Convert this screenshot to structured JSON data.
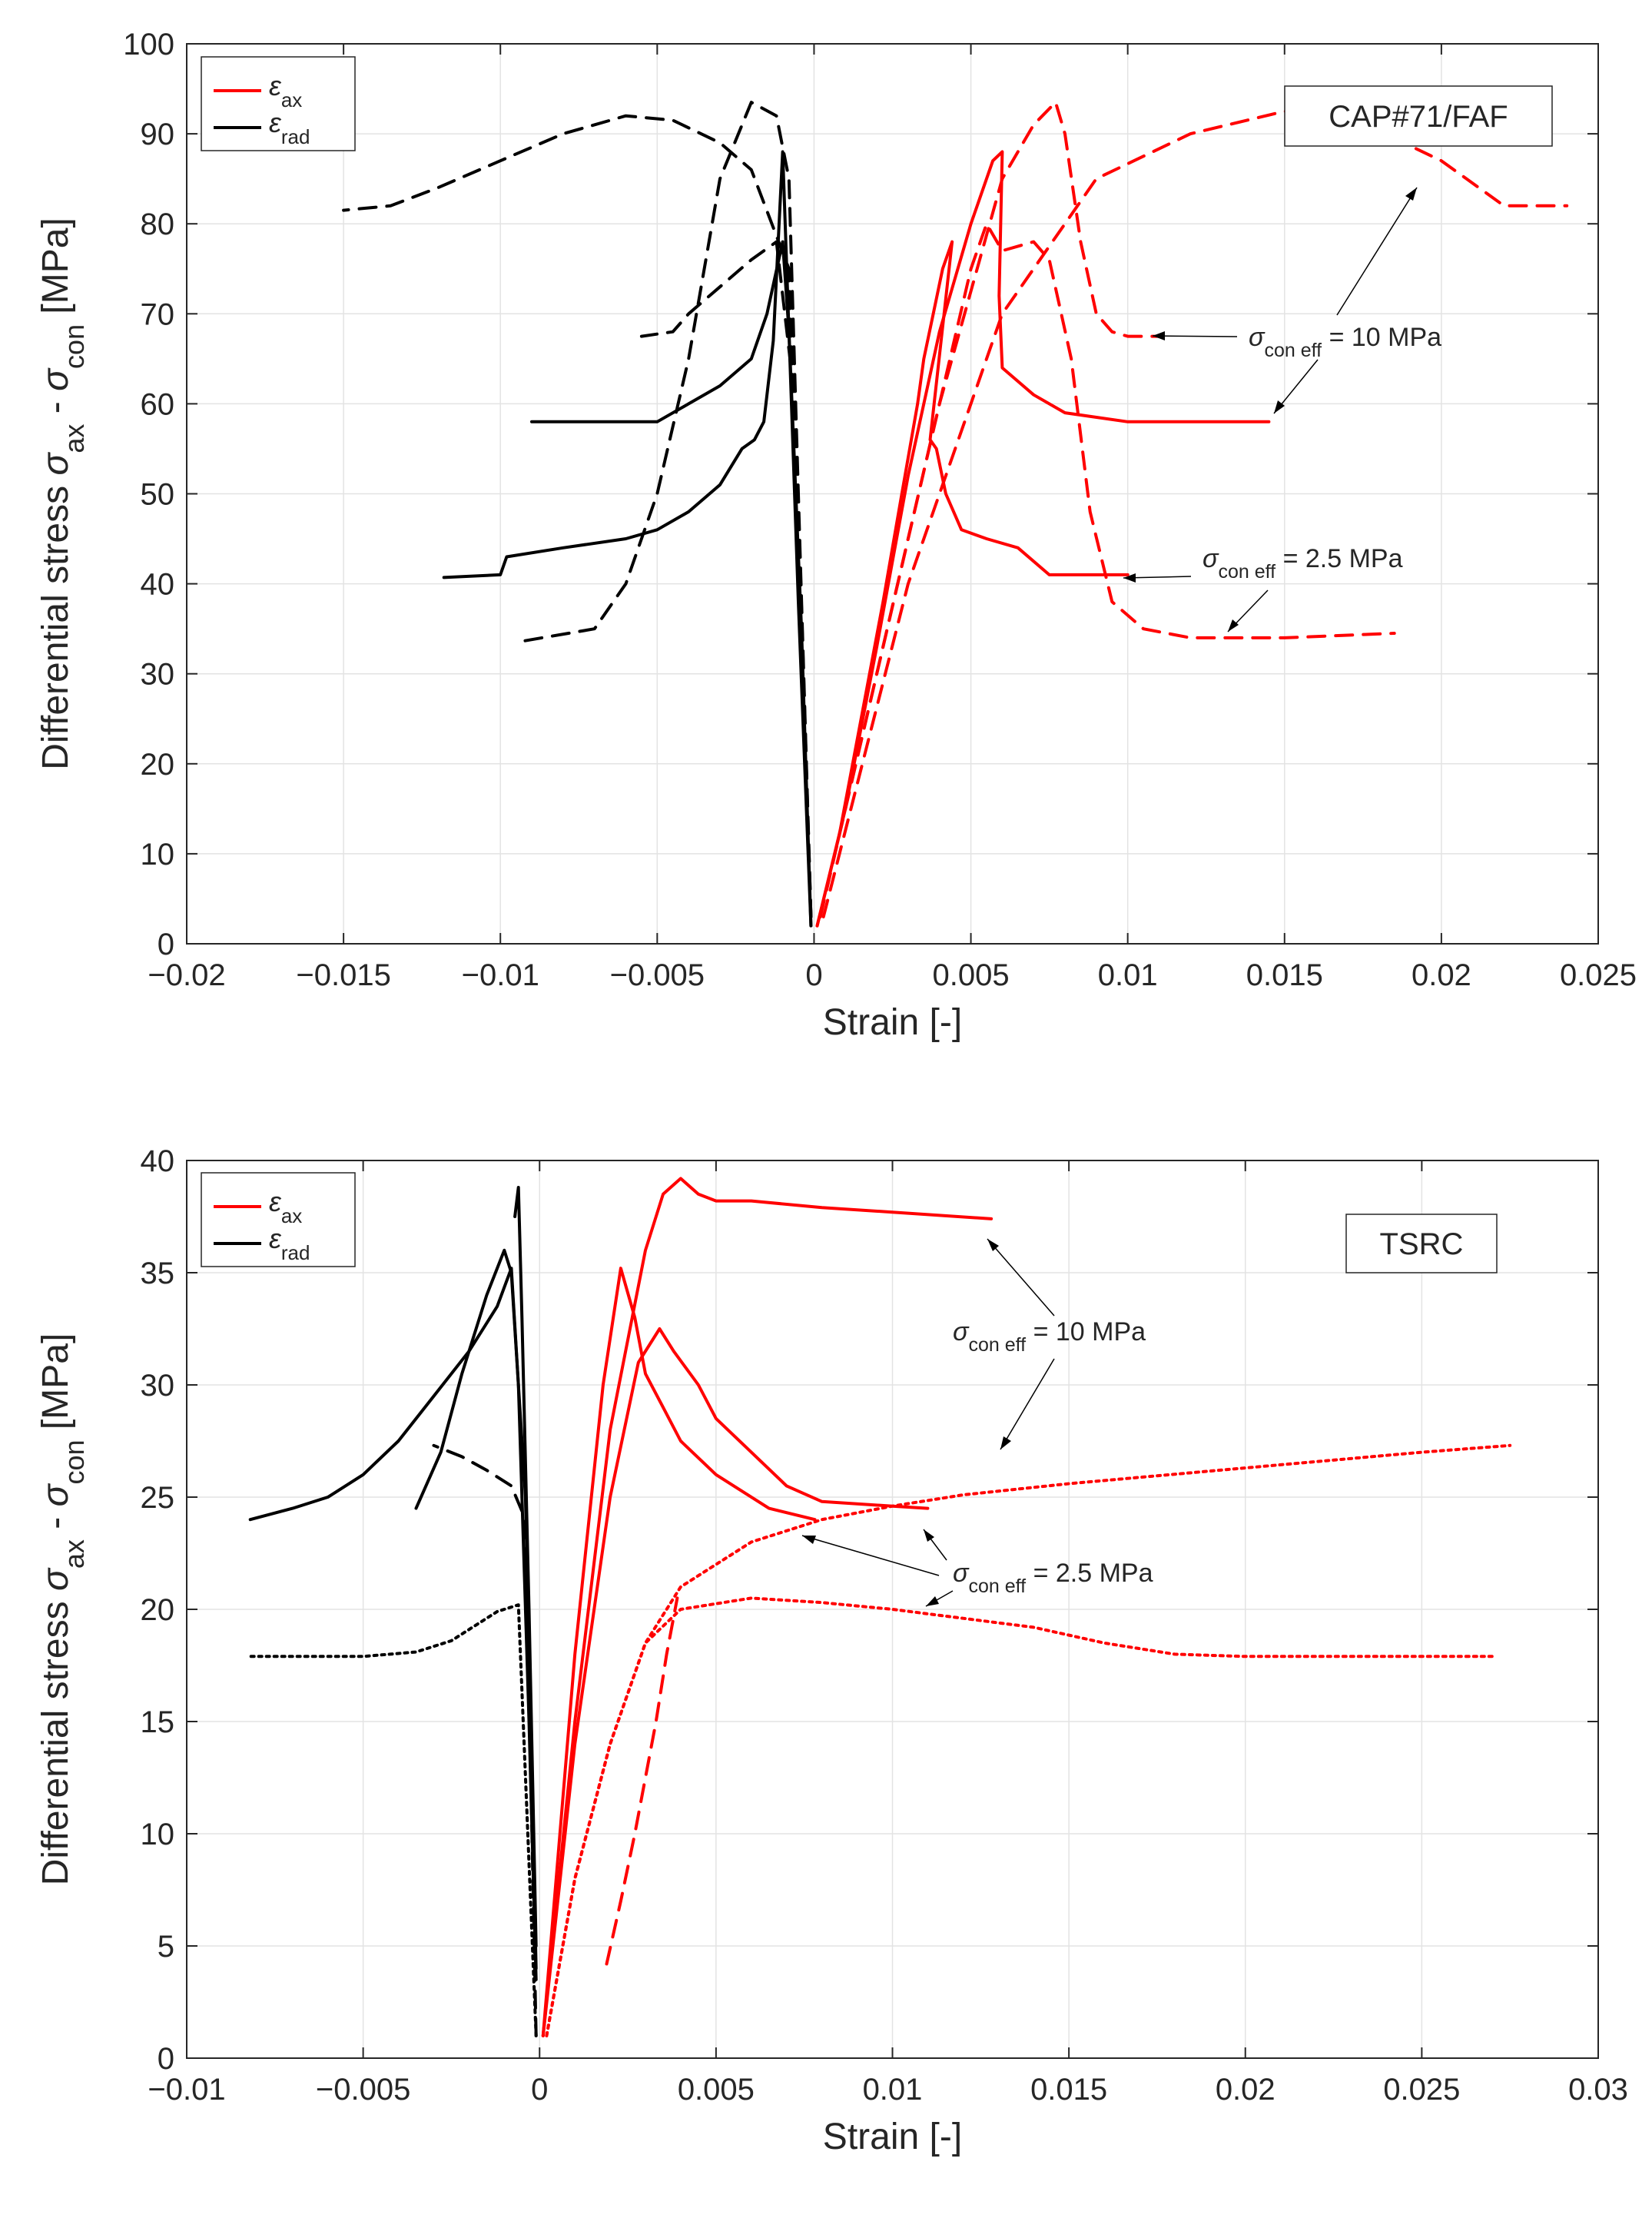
{
  "chart_data": [
    {
      "type": "line",
      "panel_label": "CAP#71/FAF",
      "xlabel": "Strain [-]",
      "ylabel": {
        "prefix": "Differential stress ",
        "sym1": "σ",
        "sub1": "ax",
        "middle": " - ",
        "sym2": "σ",
        "sub2": "con",
        "suffix": " [MPa]"
      },
      "xlim": [
        -0.02,
        0.025
      ],
      "ylim": [
        0,
        100
      ],
      "xticks": [
        -0.02,
        -0.015,
        -0.01,
        -0.005,
        0,
        0.005,
        0.01,
        0.015,
        0.02,
        0.025
      ],
      "xtick_labels": [
        "−0.02",
        "−0.015",
        "−0.01",
        "−0.005",
        "0",
        "0.005",
        "0.01",
        "0.015",
        "0.02",
        "0.025"
      ],
      "yticks": [
        0,
        10,
        20,
        30,
        40,
        50,
        60,
        70,
        80,
        90,
        100
      ],
      "ytick_labels": [
        "0",
        "10",
        "20",
        "30",
        "40",
        "50",
        "60",
        "70",
        "80",
        "90",
        "100"
      ],
      "grid": true,
      "legend": {
        "position": "top-left",
        "entries": [
          {
            "symbol": "ε",
            "sub": "ax",
            "color": "#ff0000"
          },
          {
            "symbol": "ε",
            "sub": "rad",
            "color": "#000000"
          }
        ]
      },
      "annotations": [
        {
          "sym": "σ",
          "sub": "con eff",
          "text": " = 10 MPa"
        },
        {
          "sym": "σ",
          "sub": "con eff",
          "text": " = 2.5 MPa"
        }
      ],
      "series": [
        {
          "name": "ax 10 MPa solid",
          "color": "#ff0000",
          "style": "solid",
          "x": [
            0.0001,
            0.001,
            0.002,
            0.003,
            0.004,
            0.005,
            0.0057,
            0.006,
            0.0059,
            0.006,
            0.007,
            0.008,
            0.01,
            0.012,
            0.0145
          ],
          "y": [
            2,
            15,
            33,
            52,
            68,
            80,
            87,
            88,
            72,
            64,
            61,
            59,
            58,
            58,
            58
          ]
        },
        {
          "name": "ax 2.5 MPa solid",
          "color": "#ff0000",
          "style": "solid",
          "x": [
            0.0001,
            0.0008,
            0.0015,
            0.0022,
            0.0028,
            0.0033,
            0.0035,
            0.0038,
            0.0041,
            0.0044,
            0.0037,
            0.0039,
            0.0042,
            0.0047,
            0.0055,
            0.0065,
            0.0075,
            0.0085,
            0.01
          ],
          "y": [
            2,
            12,
            25,
            38,
            50,
            60,
            65,
            70,
            75,
            78,
            56,
            55,
            50,
            46,
            45,
            44,
            41,
            41,
            41
          ]
        },
        {
          "name": "ax 10 MPa dashed",
          "color": "#ff0000",
          "style": "dashed",
          "x": [
            0.0002,
            0.002,
            0.004,
            0.006,
            0.007,
            0.0077,
            0.008,
            0.0085,
            0.009,
            0.0095,
            0.01,
            0.011
          ],
          "y": [
            3,
            30,
            60,
            85,
            91,
            93.5,
            90,
            78,
            70,
            68,
            67.5,
            67.5
          ]
        },
        {
          "name": "ax 2.5 MPa dashed",
          "color": "#ff0000",
          "style": "dashed",
          "x": [
            0.0002,
            0.002,
            0.004,
            0.005,
            0.0055,
            0.006,
            0.007,
            0.0075,
            0.0082,
            0.0088,
            0.0095,
            0.0105,
            0.012,
            0.015,
            0.0185
          ],
          "y": [
            3,
            30,
            60,
            75,
            80,
            77,
            78,
            76,
            65,
            48,
            38,
            35,
            34,
            34,
            34.5
          ]
        },
        {
          "name": "ax 10 MPa dashed long",
          "color": "#ff0000",
          "style": "dashed",
          "x": [
            0.0003,
            0.003,
            0.006,
            0.009,
            0.012,
            0.015,
            0.017,
            0.02,
            0.022,
            0.024
          ],
          "y": [
            3,
            40,
            70,
            85,
            90,
            92.5,
            92,
            87,
            82,
            82
          ]
        },
        {
          "name": "rad 10 MPa solid",
          "color": "#000000",
          "style": "solid",
          "x": [
            -0.0001,
            -0.0004,
            -0.0008,
            -0.001,
            -0.0015,
            -0.002,
            -0.003,
            -0.004,
            -0.005,
            -0.007,
            -0.009
          ],
          "y": [
            2,
            35,
            68,
            78,
            70,
            65,
            62,
            60,
            58,
            58,
            58
          ]
        },
        {
          "name": "rad 2.5 MPa solid",
          "color": "#000000",
          "style": "solid",
          "x": [
            -0.0001,
            -0.0005,
            -0.0009,
            -0.001,
            -0.0013,
            -0.0016,
            -0.0019,
            -0.0023,
            -0.003,
            -0.004,
            -0.005,
            -0.006,
            -0.008,
            -0.0098,
            -0.01,
            -0.0118
          ],
          "y": [
            2,
            38,
            78,
            88,
            67,
            58,
            56,
            55,
            51,
            48,
            46,
            45,
            44,
            43,
            41,
            40.7
          ]
        },
        {
          "name": "rad 10 MPa dashed",
          "color": "#000000",
          "style": "dashed",
          "x": [
            -0.0001,
            -0.0005,
            -0.0008,
            -0.0012,
            -0.002,
            -0.003,
            -0.004,
            -0.005,
            -0.006,
            -0.007,
            -0.0095
          ],
          "y": [
            3,
            50,
            85,
            92,
            93.5,
            85,
            65,
            50,
            40,
            35,
            33.5
          ]
        },
        {
          "name": "rad 2.5 MPa dashed",
          "color": "#000000",
          "style": "dashed",
          "x": [
            -0.0001,
            -0.0006,
            -0.0012,
            -0.002,
            -0.003,
            -0.004,
            -0.0045,
            -0.0055
          ],
          "y": [
            3,
            60,
            78,
            76,
            73,
            70,
            68,
            67.5
          ]
        },
        {
          "name": "rad 10 MPa dashed long",
          "color": "#000000",
          "style": "dashed",
          "x": [
            -0.0001,
            -0.0008,
            -0.002,
            -0.003,
            -0.0045,
            -0.006,
            -0.008,
            -0.01,
            -0.012,
            -0.0135,
            -0.015
          ],
          "y": [
            3,
            75,
            86,
            89,
            91.5,
            92,
            90,
            87,
            84,
            82,
            81.5
          ]
        }
      ]
    },
    {
      "type": "line",
      "panel_label": "TSRC",
      "xlabel": "Strain [-]",
      "ylabel": {
        "prefix": "Differential stress ",
        "sym1": "σ",
        "sub1": "ax",
        "middle": " - ",
        "sym2": "σ",
        "sub2": "con",
        "suffix": " [MPa]"
      },
      "xlim": [
        -0.01,
        0.03
      ],
      "ylim": [
        0,
        40
      ],
      "xticks": [
        -0.01,
        -0.005,
        0,
        0.005,
        0.01,
        0.015,
        0.02,
        0.025,
        0.03
      ],
      "xtick_labels": [
        "−0.01",
        "−0.005",
        "0",
        "0.005",
        "0.01",
        "0.015",
        "0.02",
        "0.025",
        "0.03"
      ],
      "yticks": [
        0,
        5,
        10,
        15,
        20,
        25,
        30,
        35,
        40
      ],
      "ytick_labels": [
        "0",
        "5",
        "10",
        "15",
        "20",
        "25",
        "30",
        "35",
        "40"
      ],
      "grid": true,
      "legend": {
        "position": "top-left",
        "entries": [
          {
            "symbol": "ε",
            "sub": "ax",
            "color": "#ff0000"
          },
          {
            "symbol": "ε",
            "sub": "rad",
            "color": "#000000"
          }
        ]
      },
      "annotations": [
        {
          "sym": "σ",
          "sub": "con eff",
          "text": " = 10 MPa"
        },
        {
          "sym": "σ",
          "sub": "con eff",
          "text": " = 2.5 MPa"
        }
      ],
      "series": [
        {
          "name": "ax 10 MPa solid",
          "color": "#ff0000",
          "style": "solid",
          "x": [
            0.0001,
            0.001,
            0.002,
            0.003,
            0.0035,
            0.004,
            0.0045,
            0.005,
            0.006,
            0.008,
            0.01,
            0.0128
          ],
          "y": [
            1,
            15,
            28,
            36,
            38.5,
            39.2,
            38.5,
            38.2,
            38.2,
            37.9,
            37.7,
            37.4
          ]
        },
        {
          "name": "ax 2.5 MPa solid",
          "color": "#ff0000",
          "style": "solid",
          "x": [
            0.0001,
            0.001,
            0.0018,
            0.0023,
            0.0027,
            0.003,
            0.0035,
            0.004,
            0.005,
            0.0065,
            0.0078
          ],
          "y": [
            1,
            18,
            30,
            35.2,
            33,
            30.5,
            29,
            27.5,
            26,
            24.5,
            24
          ]
        },
        {
          "name": "ax 10 MPa solid b",
          "color": "#ff0000",
          "style": "solid",
          "x": [
            0.0001,
            0.001,
            0.002,
            0.0028,
            0.0034,
            0.0038,
            0.0045,
            0.005,
            0.006,
            0.007,
            0.008,
            0.01,
            0.011
          ],
          "y": [
            1,
            14,
            25,
            31,
            32.5,
            31.5,
            30,
            28.5,
            27,
            25.5,
            24.8,
            24.6,
            24.5
          ]
        },
        {
          "name": "ax 10 MPa dotted",
          "color": "#ff0000",
          "style": "dotted",
          "x": [
            0.0002,
            0.001,
            0.002,
            0.003,
            0.004,
            0.006,
            0.008,
            0.01,
            0.012,
            0.015,
            0.02,
            0.025,
            0.0275
          ],
          "y": [
            1,
            8,
            14,
            18.5,
            21,
            23,
            24,
            24.6,
            25.1,
            25.6,
            26.3,
            27,
            27.3
          ]
        },
        {
          "name": "ax 2.5 MPa dotted",
          "color": "#ff0000",
          "style": "dotted",
          "x": [
            0.0002,
            0.001,
            0.002,
            0.003,
            0.004,
            0.006,
            0.008,
            0.01,
            0.012,
            0.014,
            0.016,
            0.018,
            0.02,
            0.024,
            0.027
          ],
          "y": [
            1,
            8,
            14,
            18.5,
            20,
            20.5,
            20.3,
            20,
            19.6,
            19.2,
            18.5,
            18,
            17.9,
            17.9,
            17.9
          ]
        },
        {
          "name": "ax 2.5 MPa dashed",
          "color": "#ff0000",
          "style": "dashed",
          "x": [
            0.0019,
            0.0023,
            0.0027,
            0.003,
            0.0033,
            0.0036,
            0.0039
          ],
          "y": [
            4.2,
            7,
            10,
            12.5,
            15,
            18,
            20.5
          ]
        },
        {
          "name": "rad 10 MPa solid",
          "color": "#000000",
          "style": "solid",
          "x": [
            -0.0001,
            -0.0003,
            -0.0006,
            -0.0008,
            -0.0012,
            -0.002,
            -0.003,
            -0.004,
            -0.005,
            -0.006,
            -0.007,
            -0.0082
          ],
          "y": [
            3.5,
            15,
            30,
            35.2,
            33.5,
            31.5,
            29.5,
            27.5,
            26,
            25,
            24.5,
            24
          ]
        },
        {
          "name": "rad 2.5 MPa solid",
          "color": "#000000",
          "style": "solid",
          "x": [
            -0.0001,
            -0.0004,
            -0.0008,
            -0.001,
            -0.0015,
            -0.0022,
            -0.0028,
            -0.0035
          ],
          "y": [
            4,
            25,
            35,
            36,
            34,
            30.5,
            27,
            24.5
          ]
        },
        {
          "name": "rad 10 MPa solid b",
          "color": "#000000",
          "style": "solid",
          "x": [
            -0.0001,
            -0.0003,
            -0.0005,
            -0.0006,
            -0.0007
          ],
          "y": [
            5,
            20,
            33,
            38.8,
            37.5
          ]
        },
        {
          "name": "rad 10 MPa dashed",
          "color": "#000000",
          "style": "dashed",
          "x": [
            -0.0001,
            -0.0004,
            -0.0008,
            -0.0015,
            -0.0022,
            -0.003
          ],
          "y": [
            1,
            24,
            25.5,
            26.2,
            26.8,
            27.3
          ]
        },
        {
          "name": "rad 2.5 MPa dotted",
          "color": "#000000",
          "style": "dotted",
          "x": [
            -0.0001,
            -0.0006,
            -0.0012,
            -0.0018,
            -0.0025,
            -0.0035,
            -0.005,
            -0.0065,
            -0.0082
          ],
          "y": [
            1,
            20.2,
            19.9,
            19.3,
            18.6,
            18.1,
            17.9,
            17.9,
            17.9
          ]
        }
      ]
    }
  ]
}
